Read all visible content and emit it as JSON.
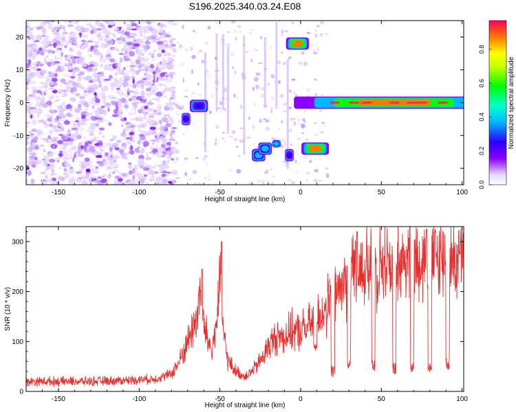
{
  "title": "S196.2025.340.03.24.E08",
  "chart_data": [
    {
      "type": "heatmap",
      "xlabel": "Height of straight line (km)",
      "ylabel": "Frequency (Hz)",
      "xlim": [
        -170,
        101
      ],
      "ylim": [
        -25,
        25
      ],
      "xticks": [
        -150,
        -100,
        -50,
        0,
        50,
        100
      ],
      "yticks": [
        -20,
        -10,
        0,
        10,
        20
      ],
      "colorbar": {
        "label": "Normalized spectral amplitude",
        "range": [
          0,
          0.97
        ],
        "ticks": [
          0.0,
          0.2,
          0.4,
          0.6,
          0.8
        ]
      },
      "features": [
        {
          "x": [
            -72,
            -70
          ],
          "freq": [
            -6,
            -4
          ],
          "amplitude": 0.35
        },
        {
          "x": [
            -66,
            -60
          ],
          "freq": [
            -2,
            0
          ],
          "amplitude": 0.3
        },
        {
          "x": [
            -28,
            -24
          ],
          "freq": [
            -17,
            -15
          ],
          "amplitude": 0.4
        },
        {
          "x": [
            -24,
            -20
          ],
          "freq": [
            -15,
            -13
          ],
          "amplitude": 0.45
        },
        {
          "x": [
            -16,
            -14
          ],
          "freq": [
            -13,
            -12
          ],
          "amplitude": 0.4
        },
        {
          "x": [
            -8,
            -6
          ],
          "freq": [
            -17,
            -15
          ],
          "amplitude": 0.35
        },
        {
          "x": [
            -6,
            2
          ],
          "freq": [
            17,
            19
          ],
          "amplitude": 0.9
        },
        {
          "x": [
            4,
            14
          ],
          "freq": [
            -15,
            -13
          ],
          "amplitude": 0.9
        },
        {
          "x": [
            16,
            100
          ],
          "freq": [
            -1,
            1
          ],
          "amplitude": 0.9
        }
      ]
    },
    {
      "type": "line",
      "xlabel": "Height of straight line (km)",
      "ylabel": "SNR (10 * v/v)",
      "xlim": [
        -170,
        101
      ],
      "ylim": [
        0,
        330
      ],
      "xticks": [
        -150,
        -100,
        -50,
        0,
        50,
        100
      ],
      "yticks": [
        0,
        100,
        200,
        300
      ],
      "series": [
        {
          "name": "SNR",
          "color": "#e8302e",
          "x": [
            -170,
            -150,
            -130,
            -110,
            -90,
            -80,
            -75,
            -70,
            -65,
            -62,
            -60,
            -55,
            -52,
            -50,
            -48,
            -45,
            -40,
            -35,
            -30,
            -25,
            -20,
            -15,
            -10,
            -5,
            0,
            5,
            10,
            15,
            20,
            25,
            30,
            35,
            40,
            45,
            50,
            55,
            60,
            65,
            70,
            75,
            80,
            85,
            90,
            95,
            100
          ],
          "y": [
            20,
            20,
            20,
            22,
            25,
            35,
            60,
            100,
            140,
            200,
            130,
            80,
            140,
            220,
            120,
            60,
            40,
            30,
            40,
            60,
            90,
            110,
            110,
            120,
            120,
            130,
            150,
            160,
            185,
            210,
            225,
            235,
            245,
            250,
            255,
            260,
            260,
            265,
            265,
            265,
            265,
            265,
            265,
            265,
            265
          ],
          "peaks": [
            {
              "x": -61,
              "y": 245
            },
            {
              "x": -49,
              "y": 300
            },
            {
              "x": 35,
              "y": 320
            },
            {
              "x": 78,
              "y": 325
            },
            {
              "x": 98,
              "y": 322
            }
          ],
          "dropouts": [
            {
              "x": 9,
              "y": 90
            },
            {
              "x": 20,
              "y": 40
            },
            {
              "x": 30,
              "y": 55
            },
            {
              "x": 45,
              "y": 50
            },
            {
              "x": 58,
              "y": 45
            },
            {
              "x": 69,
              "y": 50
            },
            {
              "x": 80,
              "y": 50
            },
            {
              "x": 91,
              "y": 55
            }
          ]
        }
      ]
    }
  ]
}
